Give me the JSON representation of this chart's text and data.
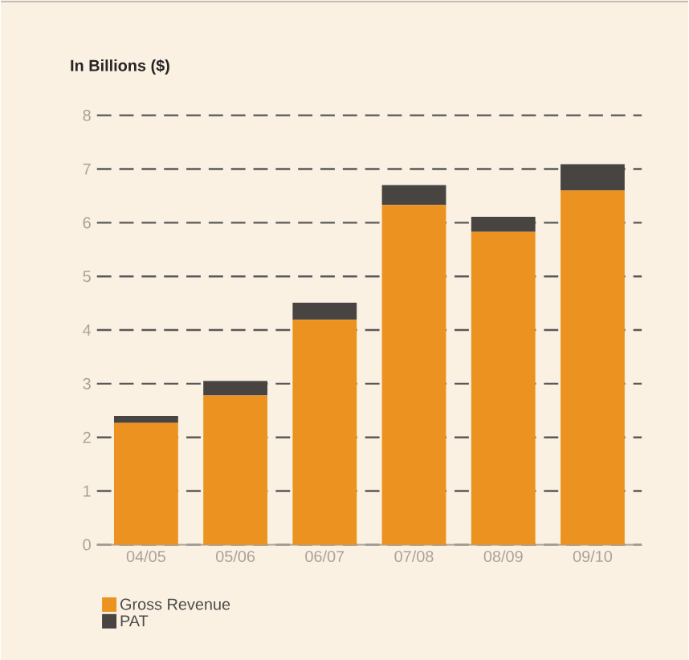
{
  "chart_data": {
    "type": "bar",
    "title": "In Billions ($)",
    "stacked": true,
    "categories": [
      "04/05",
      "05/06",
      "06/07",
      "07/08",
      "08/09",
      "09/10"
    ],
    "series": [
      {
        "name": "Gross Revenue",
        "color": "#ec9220",
        "values": [
          2.27,
          2.78,
          4.19,
          6.33,
          5.83,
          6.6
        ]
      },
      {
        "name": "PAT",
        "color": "#474441",
        "values": [
          0.13,
          0.27,
          0.32,
          0.37,
          0.28,
          0.49
        ]
      }
    ],
    "ylim": [
      0,
      8
    ],
    "yticks": [
      0,
      1,
      2,
      3,
      4,
      5,
      6,
      7,
      8
    ],
    "grid": "y",
    "legend": "bottom left"
  }
}
